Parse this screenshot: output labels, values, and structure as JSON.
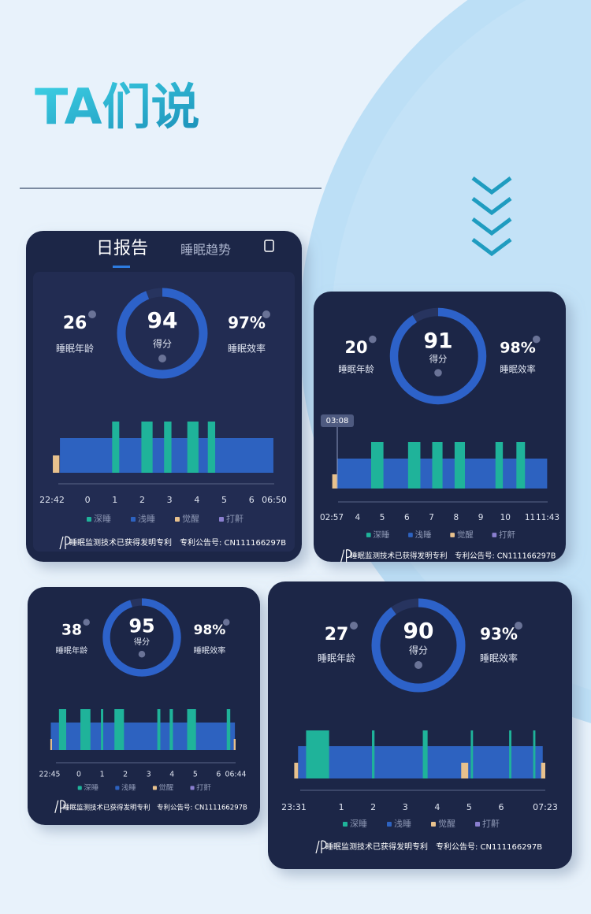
{
  "header": {
    "title": "TA们说"
  },
  "chart_data": [
    {
      "type": "sleep-report",
      "tabs": [
        "日报告",
        "睡眠趋势"
      ],
      "sleep_age": 26,
      "sleep_age_label": "睡眠年龄",
      "score": 94,
      "score_label": "得分",
      "efficiency": {
        "value": 97,
        "label": "97%"
      },
      "efficiency_label": "睡眠效率",
      "xlim": [
        -1.3,
        6.83
      ],
      "xticks": [
        {
          "value": -1.3,
          "label": "22:42"
        },
        0,
        1,
        2,
        3,
        4,
        5,
        6,
        {
          "value": 6.83,
          "label": "06:50"
        }
      ],
      "series": [
        {
          "name": "深睡",
          "color": "#1fb39a",
          "segments": [
            [
              0.9,
              1.16
            ],
            [
              1.97,
              2.38
            ],
            [
              2.8,
              3.07
            ],
            [
              3.65,
              4.06
            ],
            [
              4.4,
              4.67
            ]
          ]
        },
        {
          "name": "浅睡",
          "color": "#2d62c0",
          "segments": [
            [
              -1.01,
              6.8
            ]
          ]
        },
        {
          "name": "觉醒",
          "color": "#e8c18d",
          "segments": [
            [
              -1.27,
              -1.03
            ]
          ]
        },
        {
          "name": "打鼾",
          "color": "#8a7fd0",
          "segments": []
        }
      ],
      "patent_text": "睡眠监测技术已获得发明专利",
      "patent_number": "专利公告号: CN111166297B"
    },
    {
      "type": "sleep-report",
      "marker": "03:08",
      "sleep_age": 20,
      "sleep_age_label": "睡眠年龄",
      "score": 91,
      "score_label": "得分",
      "efficiency": {
        "value": 98,
        "label": "98%"
      },
      "efficiency_label": "睡眠效率",
      "xlim": [
        2.95,
        11.72
      ],
      "xticks": [
        {
          "value": 2.95,
          "label": "02:57"
        },
        4,
        5,
        6,
        7,
        8,
        9,
        10,
        11,
        {
          "value": 11.72,
          "label": "11:43"
        }
      ],
      "series": [
        {
          "name": "深睡",
          "color": "#1fb39a",
          "segments": [
            [
              4.55,
              5.05
            ],
            [
              6.05,
              6.55
            ],
            [
              7.03,
              7.45
            ],
            [
              7.94,
              8.36
            ],
            [
              9.6,
              9.9
            ],
            [
              10.45,
              10.8
            ]
          ]
        },
        {
          "name": "浅睡",
          "color": "#2d62c0",
          "segments": [
            [
              3.18,
              11.7
            ]
          ]
        },
        {
          "name": "觉醒",
          "color": "#e8c18d",
          "segments": [
            [
              2.97,
              3.17
            ]
          ]
        },
        {
          "name": "打鼾",
          "color": "#8a7fd0",
          "segments": []
        }
      ],
      "patent_text": "睡眠监测技术已获得发明专利",
      "patent_number": "专利公告号: CN111166297B"
    },
    {
      "type": "sleep-report",
      "sleep_age": 38,
      "sleep_age_label": "睡眠年龄",
      "score": 95,
      "score_label": "得分",
      "efficiency": {
        "value": 98,
        "label": "98%"
      },
      "efficiency_label": "睡眠效率",
      "xlim": [
        -1.25,
        6.73
      ],
      "xticks": [
        {
          "value": -1.25,
          "label": "22:45"
        },
        0,
        1,
        2,
        3,
        4,
        5,
        6,
        {
          "value": 6.73,
          "label": "06:44"
        }
      ],
      "series": [
        {
          "name": "深睡",
          "color": "#1fb39a",
          "segments": [
            [
              -0.85,
              -0.54
            ],
            [
              0.07,
              0.5
            ],
            [
              0.95,
              1.05
            ],
            [
              1.53,
              1.94
            ],
            [
              3.37,
              3.5
            ],
            [
              3.9,
              4.04
            ],
            [
              4.65,
              5.03
            ],
            [
              6.35,
              6.5
            ]
          ]
        },
        {
          "name": "浅睡",
          "color": "#2d62c0",
          "segments": [
            [
              -1.2,
              6.7
            ]
          ]
        },
        {
          "name": "觉醒",
          "color": "#e8c18d",
          "segments": [
            [
              -1.22,
              -1.15
            ],
            [
              6.65,
              6.73
            ]
          ]
        },
        {
          "name": "打鼾",
          "color": "#8a7fd0",
          "segments": []
        }
      ],
      "patent_text": "睡眠监测技术已获得发明专利",
      "patent_number": "专利公告号: CN111166297B"
    },
    {
      "type": "sleep-report",
      "sleep_age": 27,
      "sleep_age_label": "睡眠年龄",
      "score": 90,
      "score_label": "得分",
      "efficiency": {
        "value": 93,
        "label": "93%"
      },
      "efficiency_label": "睡眠效率",
      "xlim": [
        -0.48,
        7.38
      ],
      "xticks": [
        {
          "value": -0.48,
          "label": "23:31"
        },
        1,
        2,
        3,
        4,
        5,
        6,
        {
          "value": 7.38,
          "label": "07:23"
        }
      ],
      "series": [
        {
          "name": "深睡",
          "color": "#1fb39a",
          "segments": [
            [
              -0.1,
              0.62
            ],
            [
              1.96,
              2.04
            ],
            [
              3.55,
              3.7
            ],
            [
              5.05,
              5.12
            ],
            [
              6.25,
              6.32
            ],
            [
              7.0,
              7.07
            ]
          ]
        },
        {
          "name": "浅睡",
          "color": "#2d62c0",
          "segments": [
            [
              -0.35,
              7.3
            ]
          ]
        },
        {
          "name": "觉醒",
          "color": "#e8c18d",
          "segments": [
            [
              -0.47,
              -0.35
            ],
            [
              4.75,
              4.97
            ],
            [
              7.25,
              7.38
            ]
          ]
        },
        {
          "name": "打鼾",
          "color": "#8a7fd0",
          "segments": []
        }
      ],
      "patent_text": "睡眠监测技术已获得发明专利",
      "patent_number": "专利公告号: CN111166297B"
    }
  ]
}
